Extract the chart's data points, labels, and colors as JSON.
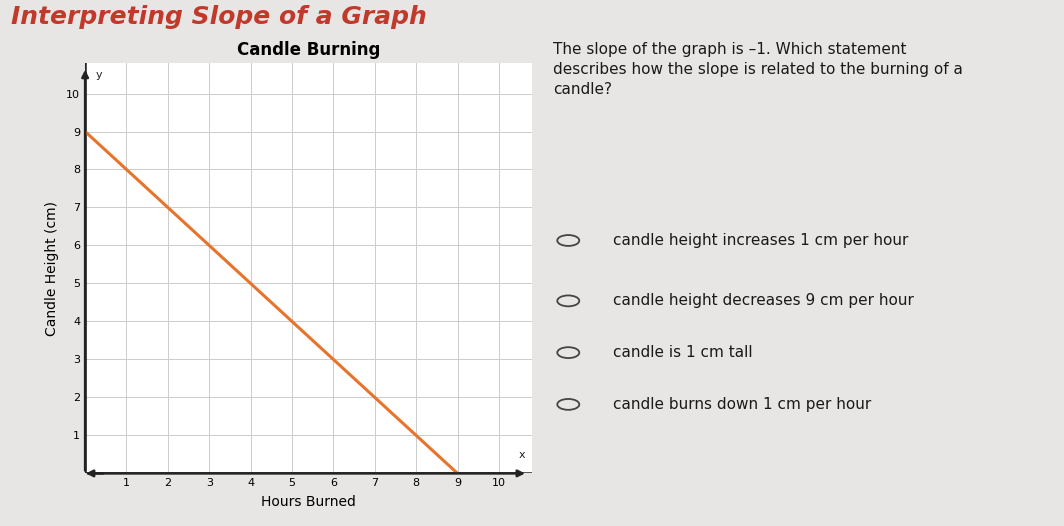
{
  "title": "Candle Burning",
  "xlabel": "Hours Burned",
  "ylabel": "Candle Height (cm)",
  "xlim": [
    0,
    10.8
  ],
  "ylim": [
    0,
    10.8
  ],
  "xticks": [
    1,
    2,
    3,
    4,
    5,
    6,
    7,
    8,
    9,
    10
  ],
  "yticks": [
    1,
    2,
    3,
    4,
    5,
    6,
    7,
    8,
    9,
    10
  ],
  "line_x": [
    0,
    9
  ],
  "line_y": [
    9,
    0
  ],
  "line_color": "#E8732A",
  "line_width": 2.2,
  "bg_color": "#e8e6e4",
  "plot_bg_color": "#ffffff",
  "header_text": "Interpreting Slope of a Graph",
  "header_color": "#C0392B",
  "question_text": "The slope of the graph is –1. Which statement\ndescribes how the slope is related to the burning of a\ncandle?",
  "choices": [
    "candle height increases 1 cm per hour",
    "candle height decreases 9 cm per hour",
    "candle is 1 cm tall",
    "candle burns down 1 cm per hour"
  ],
  "grid_color": "#cccccc",
  "axis_color": "#222222",
  "title_fontsize": 12,
  "label_fontsize": 10,
  "tick_fontsize": 8,
  "question_fontsize": 11,
  "choice_fontsize": 11
}
